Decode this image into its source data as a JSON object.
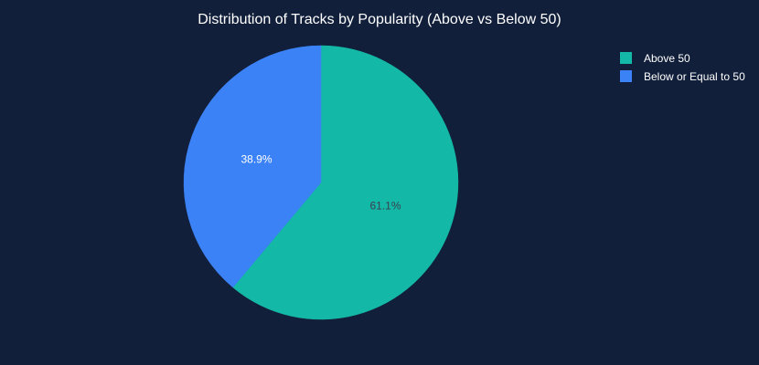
{
  "chart_data": {
    "type": "pie",
    "title": "Distribution of Tracks by Popularity (Above vs Below 50)",
    "slices": [
      {
        "label": "Above 50",
        "value": 61.1,
        "display": "61.1%",
        "color": "#14b8a6",
        "label_color": "#374151"
      },
      {
        "label": "Below or Equal to 50",
        "value": 38.9,
        "display": "38.9%",
        "color": "#3b82f6",
        "label_color": "#ffffff"
      }
    ],
    "legend_position": "top-right",
    "background": "#111f3a"
  }
}
